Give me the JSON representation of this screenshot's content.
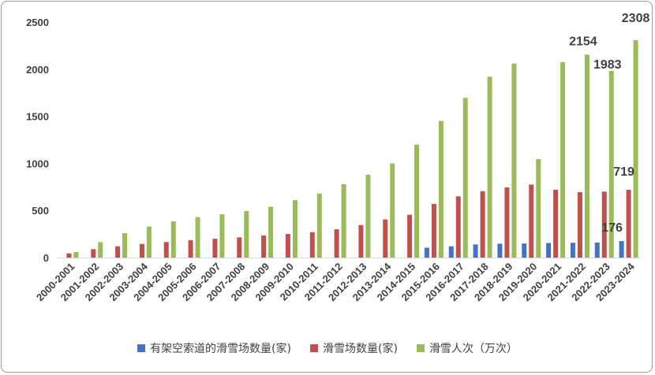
{
  "chart_data": {
    "type": "bar",
    "categories": [
      "2000-2001",
      "2001-2002",
      "2002-2003",
      "2003-2004",
      "2004-2005",
      "2005-2006",
      "2006-2007",
      "2007-2008",
      "2008-2009",
      "2009-2010",
      "2010-2011",
      "2011-2012",
      "2012-2013",
      "2013-2014",
      "2014-2015",
      "2015-2016",
      "2016-2017",
      "2017-2018",
      "2018-2019",
      "2019-2020",
      "2020-2021",
      "2021-2022",
      "2022-2023",
      "2023-2024"
    ],
    "series": [
      {
        "name": "有架空索道的滑雪场数量(家)",
        "color": "#4472C4",
        "values": [
          null,
          null,
          null,
          null,
          null,
          null,
          null,
          null,
          null,
          null,
          null,
          null,
          null,
          null,
          null,
          105,
          120,
          140,
          148,
          150,
          155,
          158,
          160,
          176
        ]
      },
      {
        "name": "滑雪场数量(家)",
        "color": "#C0504D",
        "values": [
          45,
          90,
          120,
          145,
          165,
          185,
          200,
          215,
          235,
          250,
          270,
          300,
          345,
          405,
          455,
          570,
          650,
          705,
          745,
          775,
          720,
          695,
          700,
          719
        ]
      },
      {
        "name": "滑雪人次（万次）",
        "color": "#9BBB59",
        "values": [
          60,
          165,
          260,
          330,
          385,
          430,
          460,
          495,
          540,
          610,
          680,
          780,
          880,
          1000,
          1200,
          1450,
          1695,
          1920,
          2060,
          1045,
          2075,
          2154,
          1983,
          2308
        ]
      }
    ],
    "data_labels": [
      {
        "series": 2,
        "index": 21,
        "text": "2154"
      },
      {
        "series": 2,
        "index": 22,
        "text": "1983"
      },
      {
        "series": 2,
        "index": 23,
        "text": "2308"
      },
      {
        "series": 1,
        "index": 23,
        "text": "719"
      },
      {
        "series": 0,
        "index": 23,
        "text": "176"
      }
    ],
    "ylim": [
      0,
      2500
    ],
    "yticks": [
      "0",
      "500",
      "1000",
      "1500",
      "2000",
      "2500"
    ],
    "legend_position": "bottom",
    "grid": false
  }
}
